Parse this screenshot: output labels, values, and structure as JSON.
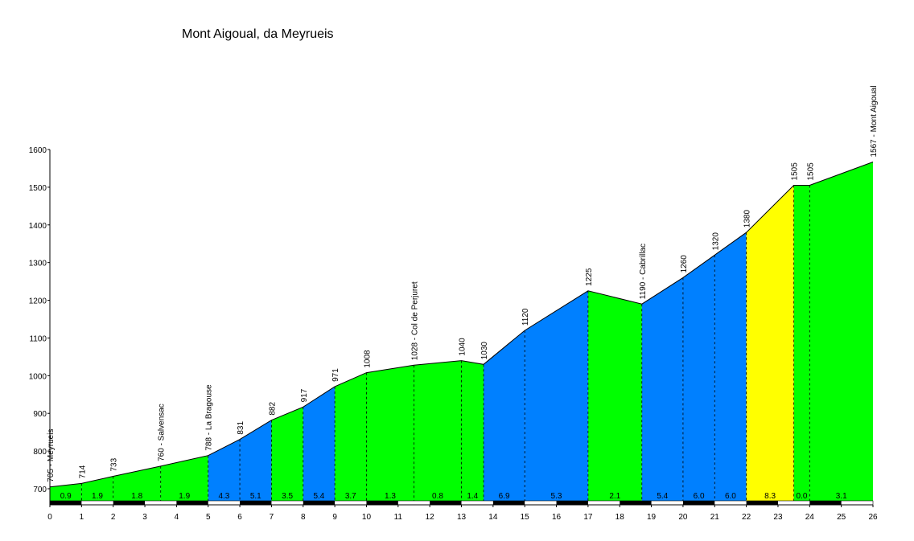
{
  "chart_data": {
    "type": "area",
    "title": "Mont Aigoual, da Meyrueis",
    "xlabel": "",
    "ylabel": "",
    "xlim": [
      0,
      26
    ],
    "ylim": [
      665,
      1600
    ],
    "x_ticks": [
      0,
      1,
      2,
      3,
      4,
      5,
      6,
      7,
      8,
      9,
      10,
      11,
      12,
      13,
      14,
      15,
      16,
      17,
      18,
      19,
      20,
      21,
      22,
      23,
      24,
      25,
      26
    ],
    "y_ticks": [
      700,
      800,
      900,
      1000,
      1100,
      1200,
      1300,
      1400,
      1500,
      1600
    ],
    "grid": false,
    "colors": {
      "green": "#00ff00",
      "blue": "#0080ff",
      "yellow": "#ffff00"
    },
    "profile": [
      {
        "x": 0,
        "elev": 705,
        "label": "705 - Meyrueis"
      },
      {
        "x": 1,
        "elev": 714,
        "label": "714"
      },
      {
        "x": 2,
        "elev": 733,
        "label": "733"
      },
      {
        "x": 3.5,
        "elev": 760,
        "label": "760 - Salvensac"
      },
      {
        "x": 5,
        "elev": 788,
        "label": "788 - La Bragouse"
      },
      {
        "x": 6,
        "elev": 831,
        "label": "831"
      },
      {
        "x": 7,
        "elev": 882,
        "label": "882"
      },
      {
        "x": 8,
        "elev": 917,
        "label": "917"
      },
      {
        "x": 9,
        "elev": 971,
        "label": "971"
      },
      {
        "x": 10,
        "elev": 1008,
        "label": "1008"
      },
      {
        "x": 11.5,
        "elev": 1028,
        "label": "1028 - Col de Perjuret"
      },
      {
        "x": 13,
        "elev": 1040,
        "label": "1040"
      },
      {
        "x": 13.7,
        "elev": 1030,
        "label": "1030"
      },
      {
        "x": 15,
        "elev": 1120,
        "label": "1120"
      },
      {
        "x": 17,
        "elev": 1225,
        "label": "1225"
      },
      {
        "x": 18.7,
        "elev": 1190,
        "label": "1190 - Cabrillac"
      },
      {
        "x": 20,
        "elev": 1260,
        "label": "1260"
      },
      {
        "x": 21,
        "elev": 1320,
        "label": "1320"
      },
      {
        "x": 22,
        "elev": 1380,
        "label": "1380"
      },
      {
        "x": 23.5,
        "elev": 1505,
        "label": "1505"
      },
      {
        "x": 24,
        "elev": 1505,
        "label": "1505"
      },
      {
        "x": 26,
        "elev": 1567,
        "label": "1567 - Mont Aigoual"
      }
    ],
    "segments": [
      {
        "from": 0,
        "to": 1,
        "gradient": "0.9",
        "color": "green"
      },
      {
        "from": 1,
        "to": 2,
        "gradient": "1.9",
        "color": "green"
      },
      {
        "from": 2,
        "to": 3.5,
        "gradient": "1.8",
        "color": "green"
      },
      {
        "from": 3.5,
        "to": 5,
        "gradient": "1.9",
        "color": "green"
      },
      {
        "from": 5,
        "to": 6,
        "gradient": "4.3",
        "color": "blue"
      },
      {
        "from": 6,
        "to": 7,
        "gradient": "5.1",
        "color": "blue"
      },
      {
        "from": 7,
        "to": 8,
        "gradient": "3.5",
        "color": "green"
      },
      {
        "from": 8,
        "to": 9,
        "gradient": "5.4",
        "color": "blue"
      },
      {
        "from": 9,
        "to": 10,
        "gradient": "3.7",
        "color": "green"
      },
      {
        "from": 10,
        "to": 11.5,
        "gradient": "1.3",
        "color": "green"
      },
      {
        "from": 11.5,
        "to": 13,
        "gradient": "0.8",
        "color": "green"
      },
      {
        "from": 13,
        "to": 13.7,
        "gradient": "1.4",
        "color": "green"
      },
      {
        "from": 13.7,
        "to": 15,
        "gradient": "6.9",
        "color": "blue"
      },
      {
        "from": 15,
        "to": 17,
        "gradient": "5.3",
        "color": "blue"
      },
      {
        "from": 17,
        "to": 18.7,
        "gradient": "2.1",
        "color": "green"
      },
      {
        "from": 18.7,
        "to": 20,
        "gradient": "5.4",
        "color": "blue"
      },
      {
        "from": 20,
        "to": 21,
        "gradient": "6.0",
        "color": "blue"
      },
      {
        "from": 21,
        "to": 22,
        "gradient": "6.0",
        "color": "blue"
      },
      {
        "from": 22,
        "to": 23.5,
        "gradient": "8.3",
        "color": "yellow"
      },
      {
        "from": 23.5,
        "to": 24,
        "gradient": "0.0",
        "color": "green"
      },
      {
        "from": 24,
        "to": 26,
        "gradient": "3.1",
        "color": "green"
      }
    ]
  }
}
